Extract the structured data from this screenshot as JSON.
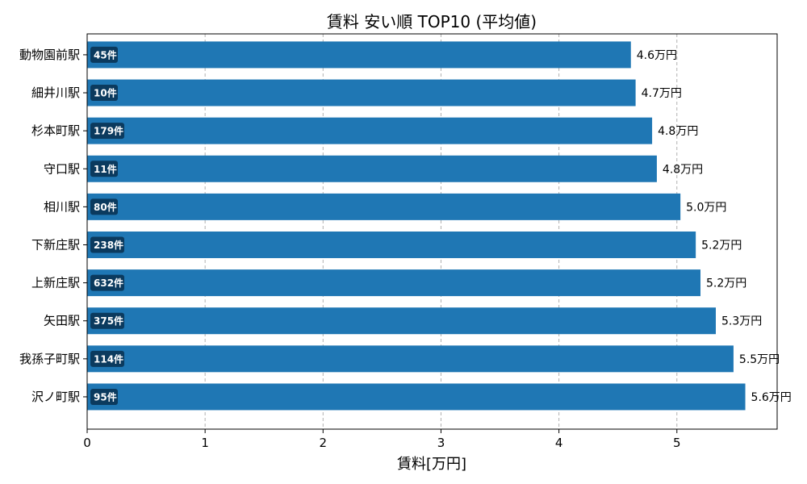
{
  "chart_data": {
    "type": "bar",
    "orientation": "horizontal",
    "title": "賃料 安い順 TOP10 (平均値)",
    "xlabel": "賃料[万円]",
    "ylabel": "",
    "xlim": [
      0,
      5.85
    ],
    "xticks": [
      "0",
      "1",
      "2",
      "3",
      "4",
      "5"
    ],
    "grid": "x-dashed",
    "bar_color": "#1f77b4",
    "badge_color": "#0b3a5e",
    "categories": [
      "動物園前駅",
      "細井川駅",
      "杉本町駅",
      "守口駅",
      "相川駅",
      "下新庄駅",
      "上新庄駅",
      "矢田駅",
      "我孫子町駅",
      "沢ノ町駅"
    ],
    "values": [
      4.61,
      4.65,
      4.79,
      4.83,
      5.03,
      5.16,
      5.2,
      5.33,
      5.48,
      5.58
    ],
    "value_labels": [
      "4.6万円",
      "4.7万円",
      "4.8万円",
      "4.8万円",
      "5.0万円",
      "5.2万円",
      "5.2万円",
      "5.3万円",
      "5.5万円",
      "5.6万円"
    ],
    "counts": [
      "45件",
      "10件",
      "179件",
      "11件",
      "80件",
      "238件",
      "632件",
      "375件",
      "114件",
      "95件"
    ]
  }
}
